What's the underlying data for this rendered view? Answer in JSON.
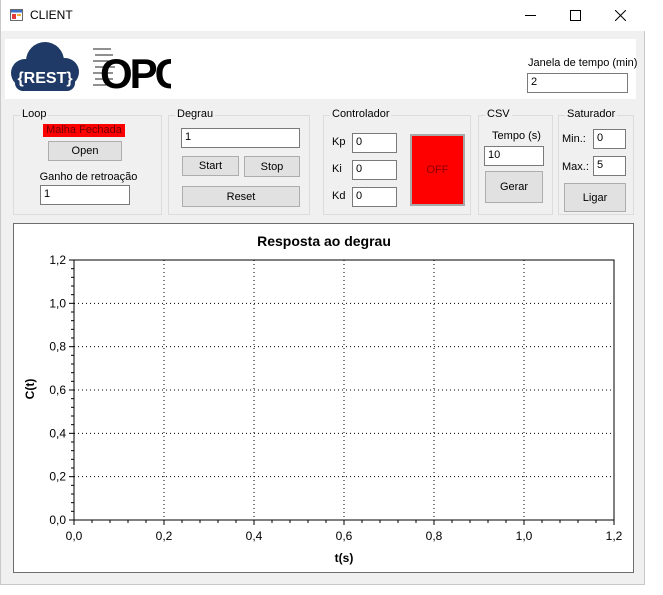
{
  "window": {
    "title": "CLIENT"
  },
  "banner": {
    "rest_logo": "{REST}",
    "opc_logo": "OPC"
  },
  "time_window": {
    "label": "Janela de tempo (min)",
    "value": "2"
  },
  "loop": {
    "title": "Loop",
    "status": "Malha Fechada",
    "open_label": "Open",
    "gain_label": "Ganho de retroação",
    "gain_value": "1",
    "status_color": "#ff0000"
  },
  "degrau": {
    "title": "Degrau",
    "value": "1",
    "start_label": "Start",
    "stop_label": "Stop",
    "reset_label": "Reset"
  },
  "controlador": {
    "title": "Controlador",
    "kp_label": "Kp",
    "kp_value": "0",
    "ki_label": "Ki",
    "ki_value": "0",
    "kd_label": "Kd",
    "kd_value": "0",
    "state_label": "OFF",
    "state_color": "#ff0000"
  },
  "csv": {
    "title": "CSV",
    "tempo_label": "Tempo (s)",
    "tempo_value": "10",
    "gerar_label": "Gerar"
  },
  "saturador": {
    "title": "Saturador",
    "min_label": "Min.:",
    "min_value": "0",
    "max_label": "Max.:",
    "max_value": "5",
    "ligar_label": "Ligar"
  },
  "chart_data": {
    "type": "line",
    "title": "Resposta ao degrau",
    "xlabel": "t(s)",
    "ylabel": "C(t)",
    "xlim": [
      0,
      1.2
    ],
    "ylim": [
      0,
      1.2
    ],
    "xticks": [
      "0,0",
      "0,2",
      "0,4",
      "0,6",
      "0,8",
      "1,0",
      "1,2"
    ],
    "yticks": [
      "0,0",
      "0,2",
      "0,4",
      "0,6",
      "0,8",
      "1,0",
      "1,2"
    ],
    "grid": true,
    "series": []
  }
}
